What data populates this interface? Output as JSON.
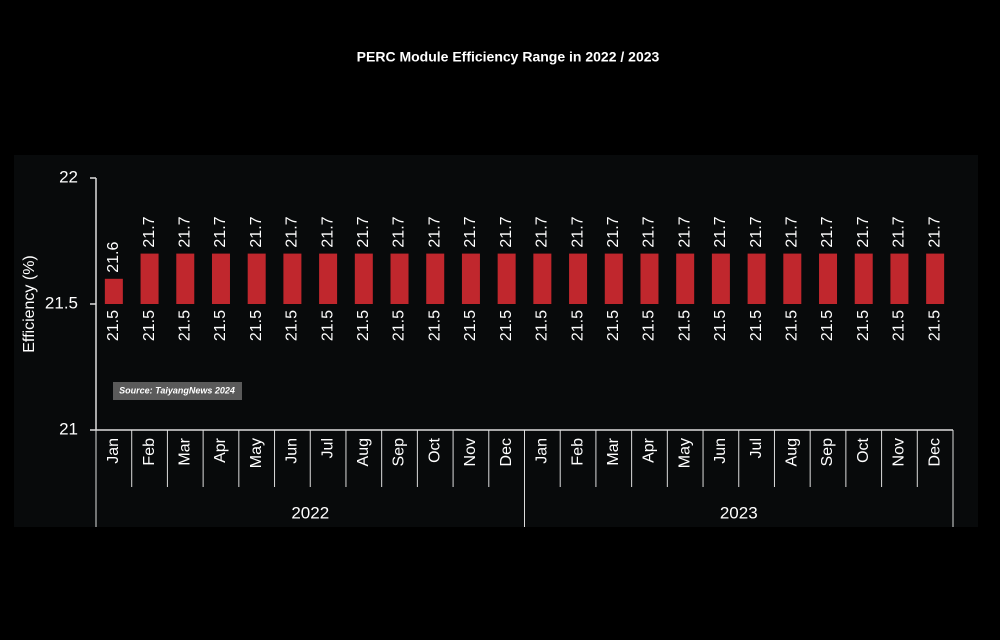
{
  "chart_data": {
    "type": "range-bar",
    "title": "PERC Module Efficiency Range in 2022 / 2023",
    "y_label": "Efficiency (%)",
    "source": "Source: TaiyangNews 2024",
    "color": "#c0272d",
    "ylim": [
      21,
      22
    ],
    "yticks": [
      21,
      21.5,
      22
    ],
    "groups": [
      {
        "name": "2022",
        "categories": [
          "Jan",
          "Feb",
          "Mar",
          "Apr",
          "May",
          "Jun",
          "Jul",
          "Aug",
          "Sep",
          "Oct",
          "Nov",
          "Dec"
        ],
        "low": [
          21.5,
          21.5,
          21.5,
          21.5,
          21.5,
          21.5,
          21.5,
          21.5,
          21.5,
          21.5,
          21.5,
          21.5
        ],
        "high": [
          21.6,
          21.7,
          21.7,
          21.7,
          21.7,
          21.7,
          21.7,
          21.7,
          21.7,
          21.7,
          21.7,
          21.7
        ]
      },
      {
        "name": "2023",
        "categories": [
          "Jan",
          "Feb",
          "Mar",
          "Apr",
          "May",
          "Jun",
          "Jul",
          "Aug",
          "Sep",
          "Oct",
          "Nov",
          "Dec"
        ],
        "low": [
          21.5,
          21.5,
          21.5,
          21.5,
          21.5,
          21.5,
          21.5,
          21.5,
          21.5,
          21.5,
          21.5,
          21.5
        ],
        "high": [
          21.7,
          21.7,
          21.7,
          21.7,
          21.7,
          21.7,
          21.7,
          21.7,
          21.7,
          21.7,
          21.7,
          21.7
        ]
      }
    ]
  }
}
